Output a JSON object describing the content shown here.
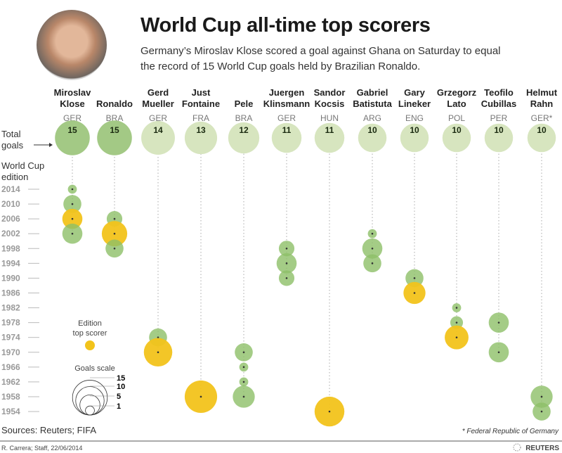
{
  "header": {
    "title": "World Cup all-time top scorers",
    "subtitle": "Germany’s Miroslav Klose scored a goal against Ghana on Saturday to equal the record of 15 World Cup goals held by Brazilian Ronaldo."
  },
  "labels": {
    "total_goals": [
      "Total",
      "goals"
    ],
    "edition": [
      "World Cup",
      "edition"
    ],
    "legend_top_scorer": [
      "Edition",
      "top scorer"
    ],
    "legend_scale": "Goals scale",
    "scale_values": [
      15,
      10,
      5,
      1
    ]
  },
  "footer": {
    "sources": "Sources: Reuters; FIFA",
    "note": "* Federal Republic of Germany",
    "credit": "R. Carrera; Staff, 22/06/2014",
    "logo": "REUTERS"
  },
  "colors": {
    "top_scorer": "#f2c31b",
    "edition_goals": "#8dbf68",
    "total_highlight": "#a3c985",
    "total_other": "#d7e5bf"
  },
  "chart_data": {
    "type": "bubble",
    "editions": [
      2014,
      2010,
      2006,
      2002,
      1998,
      1994,
      1990,
      1986,
      1982,
      1978,
      1974,
      1970,
      1966,
      1962,
      1958,
      1954
    ],
    "players": [
      {
        "name": [
          "Miroslav",
          "Klose"
        ],
        "country": "GER",
        "total": 15,
        "highlight": true,
        "goals": [
          {
            "year": 2014,
            "g": 1
          },
          {
            "year": 2010,
            "g": 4
          },
          {
            "year": 2006,
            "g": 5,
            "top": true
          },
          {
            "year": 2002,
            "g": 5
          }
        ]
      },
      {
        "name": [
          "",
          "Ronaldo"
        ],
        "country": "BRA",
        "total": 15,
        "highlight": true,
        "goals": [
          {
            "year": 2006,
            "g": 3
          },
          {
            "year": 2002,
            "g": 8,
            "top": true
          },
          {
            "year": 1998,
            "g": 4
          }
        ]
      },
      {
        "name": [
          "Gerd",
          "Mueller"
        ],
        "country": "GER",
        "total": 14,
        "goals": [
          {
            "year": 1974,
            "g": 4
          },
          {
            "year": 1970,
            "g": 10,
            "top": true
          }
        ]
      },
      {
        "name": [
          "Just",
          "Fontaine"
        ],
        "country": "FRA",
        "total": 13,
        "goals": [
          {
            "year": 1958,
            "g": 13,
            "top": true
          }
        ]
      },
      {
        "name": [
          "",
          "Pele"
        ],
        "country": "BRA",
        "total": 12,
        "goals": [
          {
            "year": 1970,
            "g": 4
          },
          {
            "year": 1966,
            "g": 1
          },
          {
            "year": 1962,
            "g": 1
          },
          {
            "year": 1958,
            "g": 6
          }
        ]
      },
      {
        "name": [
          "Juergen",
          "Klinsmann"
        ],
        "country": "GER",
        "total": 11,
        "goals": [
          {
            "year": 1998,
            "g": 3
          },
          {
            "year": 1994,
            "g": 5
          },
          {
            "year": 1990,
            "g": 3
          }
        ]
      },
      {
        "name": [
          "Sandor",
          "Kocsis"
        ],
        "country": "HUN",
        "total": 11,
        "goals": [
          {
            "year": 1954,
            "g": 11,
            "top": true
          }
        ]
      },
      {
        "name": [
          "Gabriel",
          "Batistuta"
        ],
        "country": "ARG",
        "total": 10,
        "goals": [
          {
            "year": 2002,
            "g": 1
          },
          {
            "year": 1998,
            "g": 5
          },
          {
            "year": 1994,
            "g": 4
          }
        ]
      },
      {
        "name": [
          "Gary",
          "Lineker"
        ],
        "country": "ENG",
        "total": 10,
        "goals": [
          {
            "year": 1990,
            "g": 4
          },
          {
            "year": 1986,
            "g": 6,
            "top": true
          }
        ]
      },
      {
        "name": [
          "Grzegorz",
          "Lato"
        ],
        "country": "POL",
        "total": 10,
        "goals": [
          {
            "year": 1982,
            "g": 1
          },
          {
            "year": 1978,
            "g": 2
          },
          {
            "year": 1974,
            "g": 7,
            "top": true
          }
        ]
      },
      {
        "name": [
          "Teofilo",
          "Cubillas"
        ],
        "country": "PER",
        "total": 10,
        "goals": [
          {
            "year": 1978,
            "g": 5
          },
          {
            "year": 1970,
            "g": 5
          }
        ]
      },
      {
        "name": [
          "Helmut",
          "Rahn"
        ],
        "country": "GER*",
        "total": 10,
        "goals": [
          {
            "year": 1958,
            "g": 6
          },
          {
            "year": 1954,
            "g": 4
          }
        ]
      }
    ]
  }
}
